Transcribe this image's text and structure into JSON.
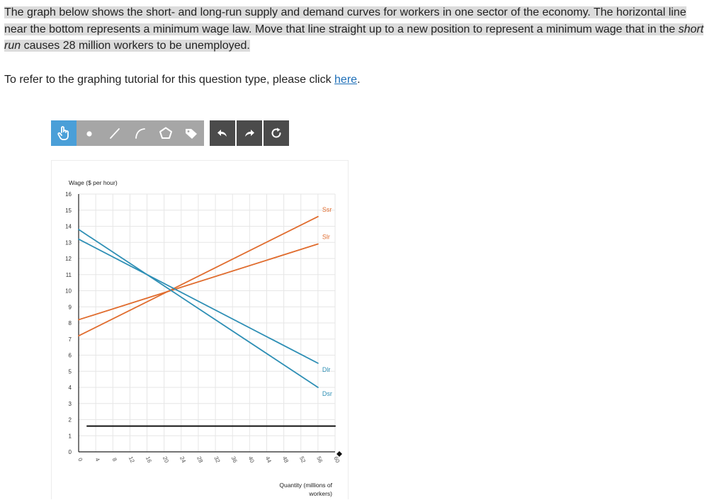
{
  "question": {
    "part1": "The graph below shows the short- and long-run supply and demand curves for workers in one sector of the economy. The horizontal line near the bottom represents a minimum wage law. Move that line straight up to a new position to represent a minimum wage that in the ",
    "emphasis": "short run",
    "part2": " causes 28 million workers to be unemployed."
  },
  "tutorial": {
    "prefix": "To refer to the graphing tutorial for this question type, please click ",
    "link": "here",
    "suffix": "."
  },
  "toolbar": {
    "tools": [
      "hand-pointer-icon",
      "point-icon",
      "line-icon",
      "curve-icon",
      "polygon-icon",
      "label-tag-icon"
    ],
    "history": [
      "undo-icon",
      "redo-icon",
      "reset-icon"
    ],
    "colors": {
      "active": "#4a9fd8",
      "tools": "#a6a6a6",
      "history": "#4b4b4b"
    }
  },
  "chart_data": {
    "type": "line",
    "ylabel": "Wage ($ per hour)",
    "xlabel": "Quantity (millions of workers)",
    "xlim": [
      0,
      60
    ],
    "ylim": [
      0,
      16
    ],
    "x_ticks": [
      0,
      4,
      8,
      12,
      16,
      20,
      24,
      28,
      32,
      36,
      40,
      44,
      48,
      52,
      56,
      60
    ],
    "y_ticks": [
      0,
      1,
      2,
      3,
      4,
      5,
      6,
      7,
      8,
      9,
      10,
      11,
      12,
      13,
      14,
      15,
      16
    ],
    "grid": true,
    "series": [
      {
        "name": "Ssr",
        "color": "#e06c2e",
        "points": [
          [
            0,
            7.2
          ],
          [
            56,
            14.6
          ]
        ]
      },
      {
        "name": "Slr",
        "color": "#e06c2e",
        "points": [
          [
            0,
            8.2
          ],
          [
            56,
            12.9
          ]
        ]
      },
      {
        "name": "Dlr",
        "color": "#2e8fb5",
        "points": [
          [
            0,
            13.2
          ],
          [
            56,
            5.5
          ]
        ]
      },
      {
        "name": "Dsr",
        "color": "#2e8fb5",
        "points": [
          [
            0,
            13.8
          ],
          [
            56,
            4.0
          ]
        ]
      },
      {
        "name": "",
        "color": "#111111",
        "points": [
          [
            2,
            1.6
          ],
          [
            60,
            1.6
          ]
        ]
      }
    ]
  }
}
